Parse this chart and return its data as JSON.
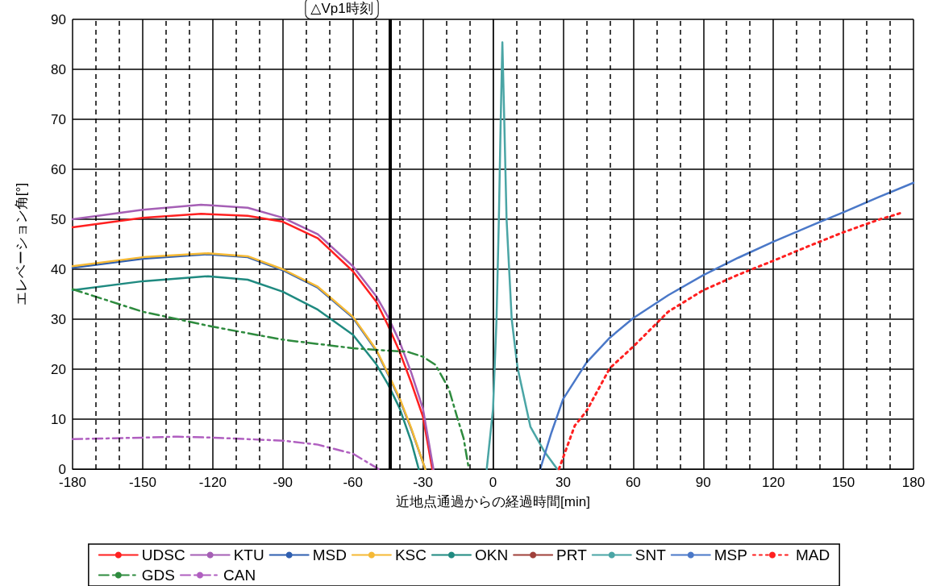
{
  "chart_data": {
    "type": "line",
    "xlabel": "近地点通過からの経過時間[min]",
    "ylabel": "エレベーション角[°]",
    "xlim": [
      -180,
      180
    ],
    "xticks": [
      -180,
      -150,
      -120,
      -90,
      -60,
      -30,
      0,
      30,
      60,
      90,
      120,
      150,
      180
    ],
    "ylim": [
      0,
      90
    ],
    "yticks": [
      0,
      10,
      20,
      30,
      40,
      50,
      60,
      70,
      80,
      90
    ],
    "grid": true,
    "legend": "bottom",
    "marker": "none",
    "ref_lines": [
      {
        "axis": "x",
        "value": -44,
        "label": "△Vp1時刻",
        "color": "#000000"
      }
    ],
    "series": [
      {
        "name": "UDSC",
        "color": "#ff2020",
        "line_style": "solid",
        "x": [
          -180,
          -150,
          -125,
          -105,
          -90,
          -75,
          -60,
          -50,
          -45,
          -40,
          -35,
          -30,
          -26
        ],
        "values": [
          48.4,
          50.3,
          51.1,
          50.7,
          49.5,
          46.2,
          39.6,
          33.5,
          28.8,
          23.5,
          17.3,
          10.5,
          0
        ]
      },
      {
        "name": "KTU",
        "color": "#a55fb5",
        "line_style": "solid",
        "x": [
          -180,
          -150,
          -125,
          -105,
          -90,
          -75,
          -60,
          -50,
          -45,
          -40,
          -35,
          -30,
          -25.5
        ],
        "values": [
          50,
          51.9,
          52.9,
          52.3,
          50.3,
          47,
          40.6,
          34.6,
          30.5,
          25.5,
          19.3,
          12.1,
          0
        ]
      },
      {
        "name": "MSD",
        "color": "#2f5fb0",
        "line_style": "solid",
        "x": [
          -180,
          -150,
          -122,
          -105,
          -90,
          -75,
          -60,
          -50,
          -45,
          -40,
          -35,
          -29
        ],
        "values": [
          40.3,
          42.1,
          43,
          42.4,
          39.8,
          36.3,
          30.3,
          23.7,
          19,
          14,
          8,
          0
        ]
      },
      {
        "name": "KSC",
        "color": "#f5b935",
        "line_style": "solid",
        "x": [
          -180,
          -150,
          -122,
          -105,
          -90,
          -75,
          -60,
          -50,
          -45,
          -40,
          -35,
          -29
        ],
        "values": [
          40.6,
          42.4,
          43.2,
          42.6,
          40,
          36.5,
          30.5,
          23.9,
          19.2,
          14.2,
          8.2,
          0
        ]
      },
      {
        "name": "OKN",
        "color": "#1f8a80",
        "line_style": "solid",
        "x": [
          -180,
          -150,
          -122,
          -105,
          -90,
          -75,
          -60,
          -50,
          -45,
          -40,
          -35,
          -31.8
        ],
        "values": [
          35.8,
          37.6,
          38.6,
          37.9,
          35.5,
          31.9,
          26.9,
          21,
          17,
          12.2,
          5.5,
          0
        ]
      },
      {
        "name": "PRT",
        "color": "#a0403a",
        "line_style": "solid"
      },
      {
        "name": "SNT",
        "color": "#4aa5a5",
        "line_style": "solid",
        "x": [
          -2.7,
          0,
          1.5,
          2.5,
          3.3,
          4,
          4.8,
          5.8,
          8,
          10.5,
          16,
          22,
          27.5
        ],
        "values": [
          0,
          12,
          30,
          50,
          70,
          85.4,
          70,
          50,
          30,
          20.3,
          8.5,
          3.5,
          0
        ]
      },
      {
        "name": "MSP",
        "color": "#4a78c8",
        "line_style": "solid",
        "x": [
          20.2,
          25,
          30,
          40,
          50,
          60,
          75,
          90,
          105,
          120,
          135,
          150,
          165,
          180
        ],
        "values": [
          0,
          7.3,
          14,
          21.3,
          26.3,
          30.2,
          34.8,
          38.8,
          42.3,
          45.5,
          48.5,
          51.4,
          54.4,
          57.3
        ]
      },
      {
        "name": "MAD",
        "color": "#ff2020",
        "line_style": "dotted",
        "x": [
          28.2,
          35,
          40,
          50,
          60,
          75,
          90,
          105,
          120,
          135,
          150,
          165,
          175
        ],
        "values": [
          0,
          8.7,
          11.6,
          20.2,
          24.5,
          31.5,
          35.8,
          38.9,
          41.7,
          44.6,
          47.4,
          49.9,
          51.3
        ]
      },
      {
        "name": "GDS",
        "color": "#2e8b3e",
        "line_style": "dashed",
        "x": [
          -180,
          -150,
          -120,
          -90,
          -60,
          -45,
          -36.7,
          -30,
          -24.7,
          -19,
          -15.3,
          -12.6,
          -10.9,
          -10.3
        ],
        "values": [
          36,
          31.5,
          28.5,
          25.9,
          24.2,
          23.7,
          23.5,
          22.5,
          20.9,
          16.2,
          10.3,
          6.2,
          1.5,
          0
        ]
      },
      {
        "name": "CAN",
        "color": "#b05fc0",
        "line_style": "dashed",
        "x": [
          -180,
          -150,
          -135,
          -120,
          -90,
          -75,
          -60,
          -50,
          -49
        ],
        "values": [
          6,
          6.3,
          6.5,
          6.3,
          5.7,
          4.9,
          3.1,
          0.3,
          0
        ]
      }
    ]
  }
}
